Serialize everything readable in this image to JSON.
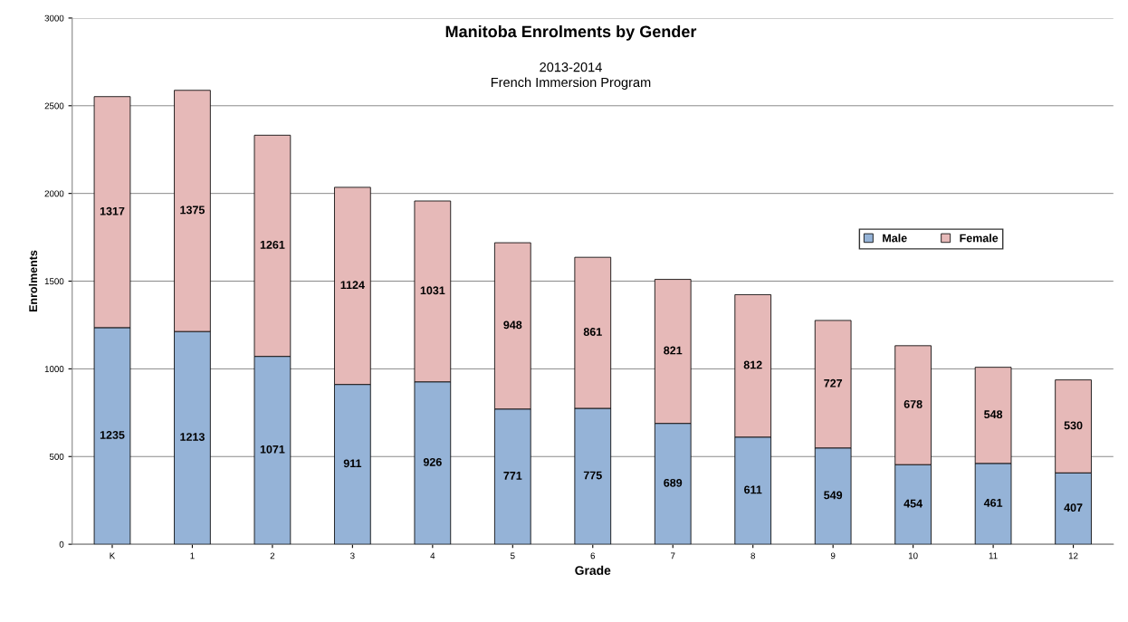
{
  "chart_data": {
    "type": "bar",
    "title": "Manitoba Enrolments by Gender",
    "subtitle": "2013-2014\nFrench Immersion Program",
    "xlabel": "Grade",
    "ylabel": "Enrolments",
    "categories": [
      "K",
      "1",
      "2",
      "3",
      "4",
      "5",
      "6",
      "7",
      "8",
      "9",
      "10",
      "11",
      "12"
    ],
    "series": [
      {
        "name": "Male",
        "color": "#95b3d7",
        "values": [
          1235,
          1213,
          1071,
          911,
          926,
          771,
          775,
          689,
          611,
          549,
          454,
          461,
          407
        ]
      },
      {
        "name": "Female",
        "color": "#e6b9b8",
        "values": [
          1317,
          1375,
          1261,
          1124,
          1031,
          948,
          861,
          821,
          812,
          727,
          678,
          548,
          530
        ]
      }
    ],
    "stacked": true,
    "data_labels": true,
    "ylim": [
      0,
      3000
    ],
    "yticks": [
      0,
      500,
      1000,
      1500,
      2000,
      2500,
      3000
    ],
    "grid": "y",
    "legend": "right"
  }
}
